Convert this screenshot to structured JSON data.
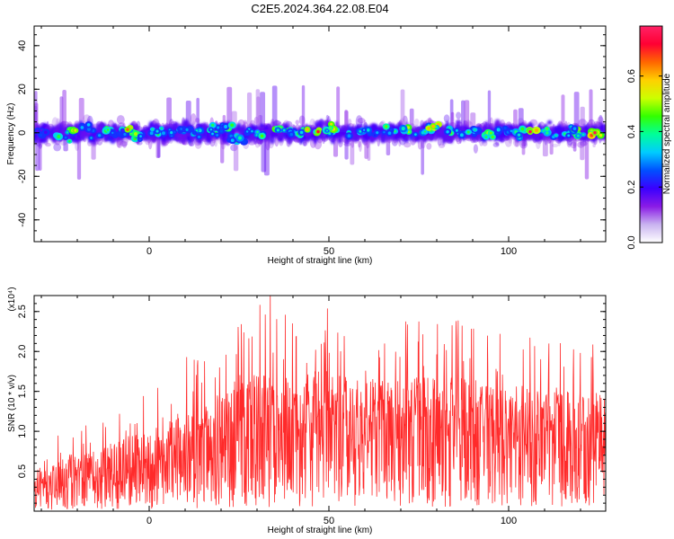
{
  "figure": {
    "title": "C2E5.2024.364.22.08.E04"
  },
  "chart_data": [
    {
      "type": "heatmap",
      "xlabel": "Height of straight line (km)",
      "ylabel": "Frequency (Hz)",
      "xlim": [
        -32,
        127
      ],
      "ylim": [
        -50,
        49
      ],
      "x_ticks": [
        "0",
        "50",
        "100"
      ],
      "x_tick_values": [
        0,
        50,
        100
      ],
      "y_ticks": [
        "40",
        "20",
        "0",
        "-20",
        "-40"
      ],
      "y_tick_values": [
        40,
        20,
        0,
        -20,
        -40
      ],
      "grid": false,
      "description_points": [
        {
          "x": -30,
          "y": 0,
          "v": 0.25
        },
        {
          "x": -25,
          "y": -4,
          "v": 0.45
        },
        {
          "x": -22,
          "y": 2,
          "v": 0.55
        },
        {
          "x": -18,
          "y": 6,
          "v": 0.35
        },
        {
          "x": -15,
          "y": -2,
          "v": 0.4
        },
        {
          "x": -12,
          "y": 4,
          "v": 0.5
        },
        {
          "x": -8,
          "y": 0,
          "v": 0.3
        },
        {
          "x": -6,
          "y": 3,
          "v": 0.65
        },
        {
          "x": -3,
          "y": -3,
          "v": 0.45
        },
        {
          "x": 2,
          "y": 1,
          "v": 0.5
        },
        {
          "x": 6,
          "y": -1,
          "v": 0.35
        },
        {
          "x": 10,
          "y": 3,
          "v": 0.4
        },
        {
          "x": 14,
          "y": -2,
          "v": 0.55
        },
        {
          "x": 18,
          "y": 1,
          "v": 0.45
        },
        {
          "x": 21,
          "y": 6,
          "v": 0.5
        },
        {
          "x": 24,
          "y": -8,
          "v": 0.45
        },
        {
          "x": 28,
          "y": 2,
          "v": 0.4
        },
        {
          "x": 32,
          "y": -1,
          "v": 0.5
        },
        {
          "x": 36,
          "y": 4,
          "v": 0.55
        },
        {
          "x": 40,
          "y": 0,
          "v": 0.45
        },
        {
          "x": 44,
          "y": 3,
          "v": 0.6
        },
        {
          "x": 47,
          "y": 1,
          "v": 0.7
        },
        {
          "x": 51,
          "y": 4,
          "v": 0.55
        },
        {
          "x": 55,
          "y": -2,
          "v": 0.4
        },
        {
          "x": 59,
          "y": 2,
          "v": 0.5
        },
        {
          "x": 63,
          "y": -3,
          "v": 0.35
        },
        {
          "x": 67,
          "y": 1,
          "v": 0.45
        },
        {
          "x": 71,
          "y": 3,
          "v": 0.55
        },
        {
          "x": 75,
          "y": 0,
          "v": 0.5
        },
        {
          "x": 79,
          "y": 6,
          "v": 0.6
        },
        {
          "x": 83,
          "y": 2,
          "v": 0.55
        },
        {
          "x": 87,
          "y": 0,
          "v": 0.45
        },
        {
          "x": 91,
          "y": 3,
          "v": 0.4
        },
        {
          "x": 95,
          "y": -1,
          "v": 0.5
        },
        {
          "x": 99,
          "y": 2,
          "v": 0.45
        },
        {
          "x": 103,
          "y": -2,
          "v": 0.55
        },
        {
          "x": 106,
          "y": 1,
          "v": 0.75
        },
        {
          "x": 110,
          "y": 3,
          "v": 0.5
        },
        {
          "x": 114,
          "y": -1,
          "v": 0.45
        },
        {
          "x": 118,
          "y": 2,
          "v": 0.55
        },
        {
          "x": 121,
          "y": 0,
          "v": 0.5
        },
        {
          "x": 124,
          "y": 0,
          "v": 0.75
        }
      ],
      "colorbar": {
        "label": "Normalized spectral amplitude",
        "range": [
          0,
          0.78
        ],
        "ticks": [
          "0.0",
          "0.2",
          "0.4",
          "0.6"
        ],
        "tick_values": [
          0.0,
          0.2,
          0.4,
          0.6
        ],
        "colors": [
          "#ffffff",
          "#c9b3f0",
          "#8a1be6",
          "#3a00ff",
          "#0050ff",
          "#00ccff",
          "#00ff99",
          "#33ff00",
          "#ccff00",
          "#ffd000",
          "#ff6600",
          "#ff0033",
          "#ff2266"
        ]
      }
    },
    {
      "type": "line",
      "xlabel": "Height of straight line (km)",
      "ylabel": "SNR (10 * v/v)",
      "y_multiplier_label": "(x10⁴)",
      "xlim": [
        -32,
        127
      ],
      "ylim": [
        0,
        2.7
      ],
      "x_ticks": [
        "0",
        "50",
        "100"
      ],
      "x_tick_values": [
        0,
        50,
        100
      ],
      "y_ticks": [
        "0.5",
        "1.0",
        "1.5",
        "2.0",
        "2.5"
      ],
      "y_tick_values": [
        0.5,
        1.0,
        1.5,
        2.0,
        2.5
      ],
      "grid": false,
      "series": [
        {
          "color": "#ff2a2a",
          "x": [
            -32,
            -25,
            -20,
            -15,
            -10,
            -5,
            0,
            5,
            10,
            15,
            20,
            25,
            30,
            35,
            40,
            45,
            50,
            55,
            60,
            65,
            70,
            75,
            80,
            85,
            90,
            95,
            100,
            105,
            110,
            115,
            120,
            125,
            127
          ],
          "y": [
            0.25,
            0.35,
            0.4,
            0.45,
            0.5,
            0.55,
            0.6,
            0.65,
            0.7,
            0.75,
            0.85,
            0.95,
            1.0,
            1.05,
            1.05,
            1.1,
            1.1,
            1.05,
            1.05,
            1.05,
            1.1,
            1.1,
            1.05,
            1.1,
            1.05,
            1.05,
            1.0,
            1.0,
            1.0,
            1.05,
            1.0,
            1.0,
            1.0
          ],
          "spread": [
            0.3,
            0.5,
            0.5,
            0.55,
            0.6,
            0.7,
            0.7,
            0.8,
            0.9,
            0.9,
            1.0,
            1.2,
            1.2,
            1.2,
            1.1,
            1.1,
            1.1,
            1.0,
            1.0,
            1.0,
            1.0,
            1.0,
            1.0,
            1.0,
            1.0,
            0.9,
            0.9,
            0.9,
            0.8,
            0.8,
            0.8,
            0.8,
            0.8
          ]
        }
      ]
    }
  ]
}
